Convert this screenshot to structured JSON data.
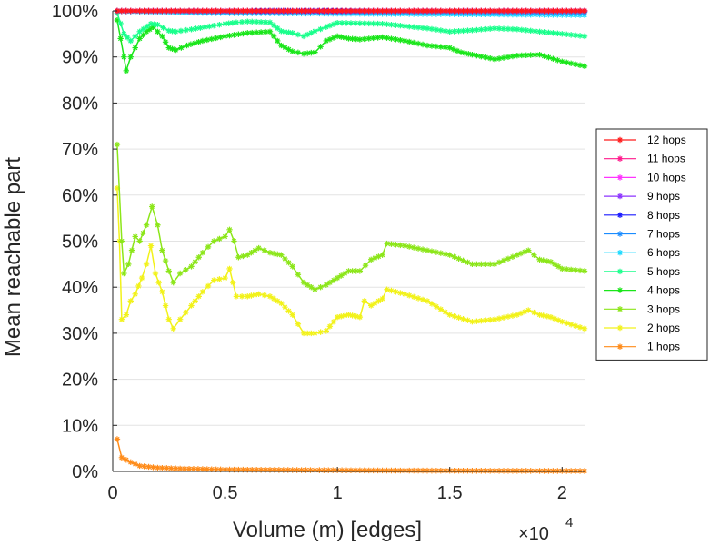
{
  "chart_data": {
    "type": "line",
    "title": "",
    "xlabel": "Volume (m) [edges]",
    "ylabel": "Mean reachable part",
    "x_multiplier": {
      "base": "×10",
      "exponent": "4"
    },
    "xlim": [
      0,
      2.1
    ],
    "ylim": [
      0,
      1
    ],
    "xticks": [
      0,
      0.5,
      1,
      1.5,
      2
    ],
    "xtick_labels": [
      "0",
      "0.5",
      "1",
      "1.5",
      "2"
    ],
    "yticks": [
      0,
      0.1,
      0.2,
      0.3,
      0.4,
      0.5,
      0.6,
      0.7,
      0.8,
      0.9,
      1
    ],
    "ytick_labels": [
      "0%",
      "10%",
      "20%",
      "30%",
      "40%",
      "50%",
      "60%",
      "70%",
      "80%",
      "90%",
      "100%"
    ],
    "grid": "horizontal",
    "legend_position": "right",
    "marker": "asterisk",
    "x_unit_scale": 10000,
    "series": [
      {
        "name": "12 hops",
        "color": "#ff1a1a",
        "points": [
          [
            0.02,
            1.0
          ],
          [
            0.6,
            1.0
          ],
          [
            2.1,
            1.0
          ]
        ]
      },
      {
        "name": "11 hops",
        "color": "#ff1a8c",
        "points": [
          [
            0.02,
            1.0
          ],
          [
            0.6,
            1.0
          ],
          [
            2.1,
            1.0
          ]
        ]
      },
      {
        "name": "10 hops",
        "color": "#ff33ff",
        "points": [
          [
            0.02,
            1.0
          ],
          [
            0.6,
            1.0
          ],
          [
            2.1,
            1.0
          ]
        ]
      },
      {
        "name": "9 hops",
        "color": "#8c33ff",
        "points": [
          [
            0.02,
            1.0
          ],
          [
            0.6,
            1.0
          ],
          [
            2.1,
            1.0
          ]
        ]
      },
      {
        "name": "8 hops",
        "color": "#1a1aff",
        "points": [
          [
            0.02,
            1.0
          ],
          [
            0.6,
            1.0
          ],
          [
            0.75,
            1.0
          ],
          [
            1.2,
            1.0
          ],
          [
            2.1,
            1.0
          ]
        ]
      },
      {
        "name": "7 hops",
        "color": "#1a8cff",
        "points": [
          [
            0.02,
            1.0
          ],
          [
            0.5,
            0.998
          ],
          [
            1.0,
            0.998
          ],
          [
            1.5,
            0.998
          ],
          [
            2.1,
            0.997
          ]
        ]
      },
      {
        "name": "6 hops",
        "color": "#1ad9ff",
        "points": [
          [
            0.02,
            0.999
          ],
          [
            0.5,
            0.995
          ],
          [
            1.0,
            0.994
          ],
          [
            1.5,
            0.993
          ],
          [
            2.1,
            0.991
          ]
        ]
      },
      {
        "name": "5 hops",
        "color": "#1aff8c",
        "points": [
          [
            0.02,
            0.995
          ],
          [
            0.05,
            0.95
          ],
          [
            0.08,
            0.935
          ],
          [
            0.12,
            0.955
          ],
          [
            0.17,
            0.972
          ],
          [
            0.2,
            0.97
          ],
          [
            0.25,
            0.957
          ],
          [
            0.28,
            0.955
          ],
          [
            0.35,
            0.96
          ],
          [
            0.45,
            0.968
          ],
          [
            0.5,
            0.972
          ],
          [
            0.55,
            0.975
          ],
          [
            0.6,
            0.977
          ],
          [
            0.7,
            0.975
          ],
          [
            0.75,
            0.956
          ],
          [
            0.8,
            0.952
          ],
          [
            0.85,
            0.945
          ],
          [
            0.9,
            0.956
          ],
          [
            0.95,
            0.965
          ],
          [
            1.0,
            0.974
          ],
          [
            1.1,
            0.973
          ],
          [
            1.2,
            0.972
          ],
          [
            1.3,
            0.967
          ],
          [
            1.4,
            0.962
          ],
          [
            1.5,
            0.955
          ],
          [
            1.6,
            0.958
          ],
          [
            1.7,
            0.962
          ],
          [
            1.8,
            0.96
          ],
          [
            1.9,
            0.955
          ],
          [
            2.0,
            0.95
          ],
          [
            2.1,
            0.945
          ]
        ]
      },
      {
        "name": "4 hops",
        "color": "#1ae61a",
        "points": [
          [
            0.02,
            0.98
          ],
          [
            0.05,
            0.9
          ],
          [
            0.06,
            0.87
          ],
          [
            0.08,
            0.9
          ],
          [
            0.12,
            0.94
          ],
          [
            0.15,
            0.955
          ],
          [
            0.18,
            0.965
          ],
          [
            0.22,
            0.945
          ],
          [
            0.25,
            0.92
          ],
          [
            0.28,
            0.915
          ],
          [
            0.33,
            0.925
          ],
          [
            0.4,
            0.935
          ],
          [
            0.5,
            0.945
          ],
          [
            0.6,
            0.952
          ],
          [
            0.7,
            0.955
          ],
          [
            0.75,
            0.925
          ],
          [
            0.8,
            0.912
          ],
          [
            0.85,
            0.907
          ],
          [
            0.9,
            0.91
          ],
          [
            0.95,
            0.935
          ],
          [
            1.0,
            0.945
          ],
          [
            1.05,
            0.94
          ],
          [
            1.1,
            0.938
          ],
          [
            1.2,
            0.943
          ],
          [
            1.3,
            0.935
          ],
          [
            1.4,
            0.925
          ],
          [
            1.5,
            0.92
          ],
          [
            1.55,
            0.91
          ],
          [
            1.6,
            0.905
          ],
          [
            1.7,
            0.895
          ],
          [
            1.8,
            0.903
          ],
          [
            1.9,
            0.905
          ],
          [
            2.0,
            0.89
          ],
          [
            2.1,
            0.88
          ]
        ]
      },
      {
        "name": "3 hops",
        "color": "#8ce61a",
        "points": [
          [
            0.02,
            0.71
          ],
          [
            0.04,
            0.5
          ],
          [
            0.05,
            0.43
          ],
          [
            0.07,
            0.45
          ],
          [
            0.1,
            0.51
          ],
          [
            0.12,
            0.5
          ],
          [
            0.15,
            0.535
          ],
          [
            0.175,
            0.575
          ],
          [
            0.2,
            0.535
          ],
          [
            0.22,
            0.48
          ],
          [
            0.25,
            0.435
          ],
          [
            0.27,
            0.41
          ],
          [
            0.3,
            0.43
          ],
          [
            0.35,
            0.445
          ],
          [
            0.4,
            0.475
          ],
          [
            0.45,
            0.5
          ],
          [
            0.5,
            0.51
          ],
          [
            0.52,
            0.525
          ],
          [
            0.54,
            0.5
          ],
          [
            0.56,
            0.465
          ],
          [
            0.6,
            0.47
          ],
          [
            0.65,
            0.485
          ],
          [
            0.7,
            0.475
          ],
          [
            0.75,
            0.47
          ],
          [
            0.8,
            0.445
          ],
          [
            0.85,
            0.41
          ],
          [
            0.9,
            0.395
          ],
          [
            0.95,
            0.405
          ],
          [
            1.0,
            0.42
          ],
          [
            1.05,
            0.435
          ],
          [
            1.1,
            0.435
          ],
          [
            1.15,
            0.46
          ],
          [
            1.2,
            0.47
          ],
          [
            1.22,
            0.495
          ],
          [
            1.3,
            0.49
          ],
          [
            1.4,
            0.48
          ],
          [
            1.5,
            0.47
          ],
          [
            1.6,
            0.45
          ],
          [
            1.7,
            0.45
          ],
          [
            1.8,
            0.47
          ],
          [
            1.85,
            0.48
          ],
          [
            1.9,
            0.46
          ],
          [
            1.95,
            0.455
          ],
          [
            2.0,
            0.44
          ],
          [
            2.1,
            0.435
          ]
        ]
      },
      {
        "name": "2 hops",
        "color": "#f2f21a",
        "points": [
          [
            0.02,
            0.615
          ],
          [
            0.03,
            0.5
          ],
          [
            0.04,
            0.33
          ],
          [
            0.06,
            0.34
          ],
          [
            0.08,
            0.37
          ],
          [
            0.1,
            0.385
          ],
          [
            0.13,
            0.42
          ],
          [
            0.15,
            0.45
          ],
          [
            0.17,
            0.49
          ],
          [
            0.19,
            0.43
          ],
          [
            0.22,
            0.39
          ],
          [
            0.25,
            0.33
          ],
          [
            0.27,
            0.31
          ],
          [
            0.3,
            0.33
          ],
          [
            0.35,
            0.36
          ],
          [
            0.4,
            0.39
          ],
          [
            0.45,
            0.415
          ],
          [
            0.5,
            0.42
          ],
          [
            0.52,
            0.44
          ],
          [
            0.55,
            0.38
          ],
          [
            0.6,
            0.38
          ],
          [
            0.65,
            0.385
          ],
          [
            0.7,
            0.38
          ],
          [
            0.75,
            0.365
          ],
          [
            0.8,
            0.34
          ],
          [
            0.85,
            0.3
          ],
          [
            0.9,
            0.3
          ],
          [
            0.95,
            0.305
          ],
          [
            1.0,
            0.335
          ],
          [
            1.05,
            0.34
          ],
          [
            1.1,
            0.335
          ],
          [
            1.12,
            0.37
          ],
          [
            1.15,
            0.36
          ],
          [
            1.2,
            0.375
          ],
          [
            1.22,
            0.395
          ],
          [
            1.3,
            0.385
          ],
          [
            1.4,
            0.37
          ],
          [
            1.5,
            0.34
          ],
          [
            1.6,
            0.325
          ],
          [
            1.7,
            0.33
          ],
          [
            1.8,
            0.34
          ],
          [
            1.85,
            0.35
          ],
          [
            1.9,
            0.34
          ],
          [
            1.95,
            0.335
          ],
          [
            2.0,
            0.325
          ],
          [
            2.1,
            0.31
          ]
        ]
      },
      {
        "name": "1 hops",
        "color": "#ff8c1a",
        "points": [
          [
            0.02,
            0.07
          ],
          [
            0.04,
            0.03
          ],
          [
            0.08,
            0.02
          ],
          [
            0.12,
            0.012
          ],
          [
            0.2,
            0.008
          ],
          [
            0.3,
            0.006
          ],
          [
            0.5,
            0.004
          ],
          [
            0.8,
            0.003
          ],
          [
            1.2,
            0.002
          ],
          [
            1.6,
            0.0015
          ],
          [
            2.1,
            0.001
          ]
        ]
      }
    ]
  }
}
